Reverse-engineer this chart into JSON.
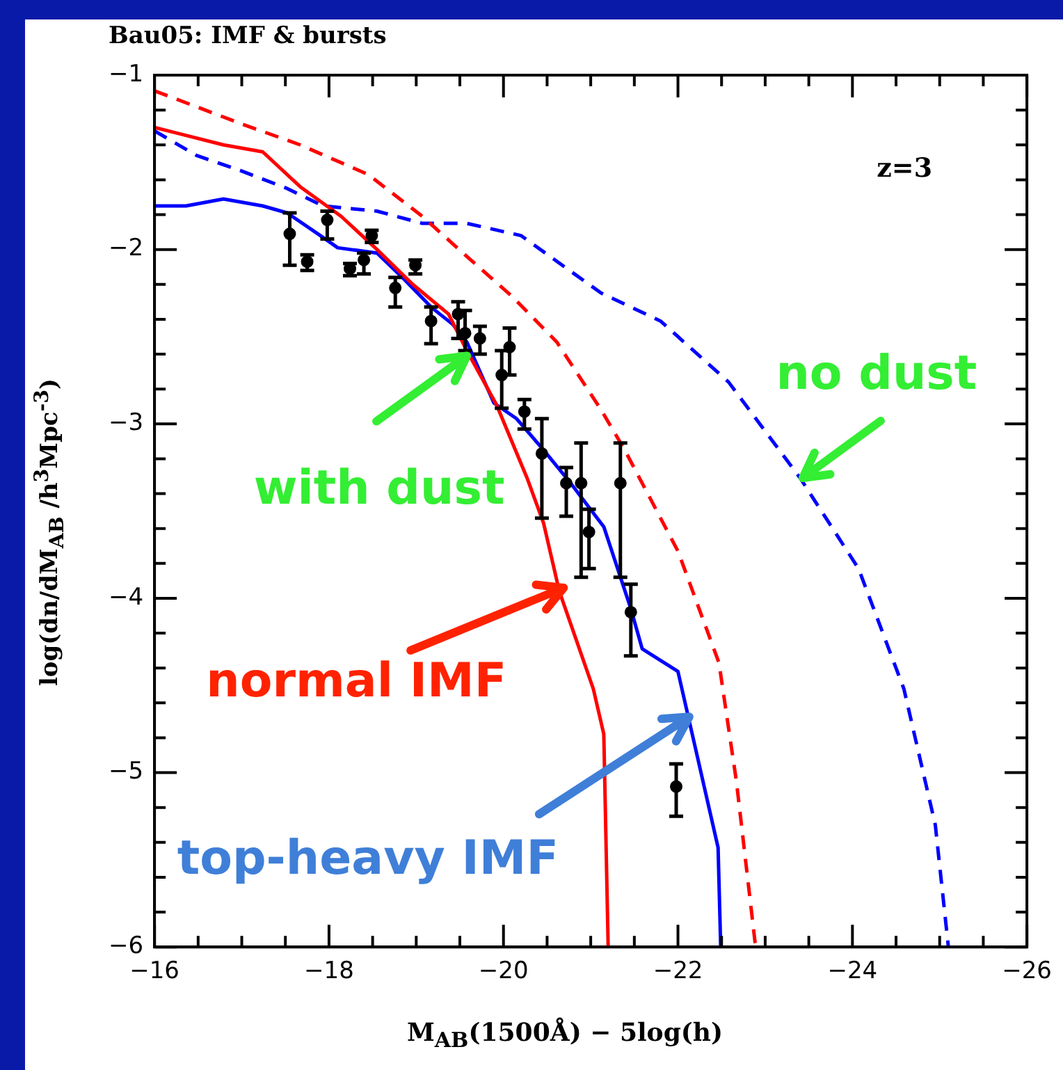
{
  "chart_data": {
    "type": "line",
    "title": "Bau05: IMF & bursts",
    "xlabel": "M$_{AB}$(1500Å) − 5log(h)",
    "ylabel": "log(dn/dM$_{AB}$ /h$^{3}$Mpc$^{-3}$)",
    "xlim": [
      -16,
      -26
    ],
    "ylim": [
      -6,
      -1
    ],
    "xticks": [
      -16,
      {
        "value": -16.5,
        "label": null
      },
      {
        "value": -17,
        "label": null
      },
      {
        "value": -17.5,
        "label": null
      },
      -18,
      {
        "value": -18.5,
        "label": null
      },
      {
        "value": -19,
        "label": null
      },
      {
        "value": -19.5,
        "label": null
      },
      -20,
      {
        "value": -20.5,
        "label": null
      },
      {
        "value": -21,
        "label": null
      },
      {
        "value": -21.5,
        "label": null
      },
      -22,
      {
        "value": -22.5,
        "label": null
      },
      {
        "value": -23,
        "label": null
      },
      {
        "value": -23.5,
        "label": null
      },
      -24,
      {
        "value": -24.5,
        "label": null
      },
      {
        "value": -25,
        "label": null
      },
      {
        "value": -25.5,
        "label": null
      },
      -26
    ],
    "yticks": [
      -6,
      {
        "value": -5.8,
        "label": null
      },
      {
        "value": -5.6,
        "label": null
      },
      {
        "value": -5.4,
        "label": null
      },
      {
        "value": -5.2,
        "label": null
      },
      -5,
      {
        "value": -4.8,
        "label": null
      },
      {
        "value": -4.6,
        "label": null
      },
      {
        "value": -4.4,
        "label": null
      },
      {
        "value": -4.2,
        "label": null
      },
      -4,
      {
        "value": -3.8,
        "label": null
      },
      {
        "value": -3.6,
        "label": null
      },
      {
        "value": -3.4,
        "label": null
      },
      {
        "value": -3.2,
        "label": null
      },
      -3,
      {
        "value": -2.8,
        "label": null
      },
      {
        "value": -2.6,
        "label": null
      },
      {
        "value": -2.4,
        "label": null
      },
      {
        "value": -2.2,
        "label": null
      },
      -2,
      {
        "value": -1.8,
        "label": null
      },
      {
        "value": -1.6,
        "label": null
      },
      {
        "value": -1.4,
        "label": null
      },
      {
        "value": -1.2,
        "label": null
      },
      -1
    ],
    "grid": false,
    "legend": false,
    "series": [
      {
        "color": "#ff0000",
        "line_style": "solid",
        "marker": "none",
        "x": [
          -16,
          -16.79,
          -17.24,
          -17.67,
          -18.14,
          -18.55,
          -18.96,
          -19.37,
          -19.58,
          -19.92,
          -20.27,
          -20.46,
          -20.64,
          -21.03,
          -21.15,
          -21.2
        ],
        "values": [
          -1.3,
          -1.4,
          -1.44,
          -1.64,
          -1.81,
          -2.0,
          -2.2,
          -2.37,
          -2.58,
          -2.89,
          -3.31,
          -3.57,
          -3.96,
          -4.52,
          -4.78,
          -6
        ]
      },
      {
        "color": "#ff0000",
        "line_style": "dashed",
        "marker": "none",
        "x": [
          -16,
          -17.0,
          -17.67,
          -18.45,
          -19.07,
          -19.58,
          -20.1,
          -20.61,
          -21.12,
          -21.39,
          -22.0,
          -22.47,
          -22.67,
          -22.89
        ],
        "values": [
          -1.09,
          -1.28,
          -1.4,
          -1.57,
          -1.81,
          -2.04,
          -2.27,
          -2.53,
          -2.92,
          -3.15,
          -3.73,
          -4.37,
          -5.05,
          -6
        ]
      },
      {
        "color": "#0000ff",
        "line_style": "solid",
        "marker": "none",
        "x": [
          -16,
          -16.36,
          -16.79,
          -17.24,
          -17.52,
          -17.93,
          -18.1,
          -18.55,
          -18.86,
          -19.17,
          -19.42,
          -19.58,
          -19.89,
          -20.15,
          -20.46,
          -20.77,
          -21.15,
          -21.46,
          -21.59,
          -22.0,
          -22.46,
          -22.49
        ],
        "values": [
          -1.75,
          -1.75,
          -1.71,
          -1.75,
          -1.79,
          -1.93,
          -1.99,
          -2.02,
          -2.17,
          -2.33,
          -2.43,
          -2.53,
          -2.88,
          -2.97,
          -3.15,
          -3.34,
          -3.59,
          -4.06,
          -4.29,
          -4.42,
          -5.43,
          -6
        ]
      },
      {
        "color": "#0000ff",
        "line_style": "dashed",
        "marker": "none",
        "x": [
          -16,
          -16.48,
          -17.0,
          -17.52,
          -17.93,
          -18.55,
          -19.07,
          -19.58,
          -20.2,
          -21.12,
          -21.8,
          -22.58,
          -23.4,
          -24.07,
          -24.59,
          -24.95,
          -25.1
        ],
        "values": [
          -1.32,
          -1.46,
          -1.55,
          -1.65,
          -1.75,
          -1.78,
          -1.85,
          -1.85,
          -1.92,
          -2.25,
          -2.41,
          -2.76,
          -3.31,
          -3.83,
          -4.52,
          -5.3,
          -6
        ]
      },
      {
        "type": "scatter",
        "color": "#000000",
        "marker": "circle",
        "x": [
          -17.55,
          -17.75,
          -17.98,
          -18.24,
          -18.4,
          -18.49,
          -18.76,
          -18.99,
          -19.17,
          -19.48,
          -19.56,
          -19.73,
          -19.98,
          -20.07,
          -20.24,
          -20.44,
          -20.72,
          -20.89,
          -20.98,
          -21.34,
          -21.46,
          -21.98
        ],
        "values": [
          -1.91,
          -2.07,
          -1.83,
          -2.11,
          -2.06,
          -1.92,
          -2.22,
          -2.09,
          -2.41,
          -2.37,
          -2.48,
          -2.51,
          -2.72,
          -2.56,
          -2.93,
          -3.17,
          -3.34,
          -3.34,
          -3.62,
          -3.34,
          -4.08,
          -5.08
        ],
        "errors": [
          [
            -2.09,
            -1.79
          ],
          [
            -2.12,
            -2.03
          ],
          [
            -1.94,
            -1.78
          ],
          [
            -2.15,
            -2.08
          ],
          [
            -2.14,
            -2.02
          ],
          [
            -1.96,
            -1.89
          ],
          [
            -2.33,
            -2.16
          ],
          [
            -2.14,
            -2.06
          ],
          [
            -2.54,
            -2.33
          ],
          [
            -2.51,
            -2.3
          ],
          [
            -2.58,
            -2.35
          ],
          [
            -2.6,
            -2.44
          ],
          [
            -2.91,
            -2.58
          ],
          [
            -2.72,
            -2.45
          ],
          [
            -3.03,
            -2.86
          ],
          [
            -3.54,
            -2.97
          ],
          [
            -3.53,
            -3.25
          ],
          [
            -3.88,
            -3.11
          ],
          [
            -3.83,
            -3.49
          ],
          [
            -3.88,
            -3.11
          ],
          [
            -4.33,
            -3.92
          ],
          [
            -5.25,
            -4.95
          ]
        ]
      }
    ],
    "annotations": [
      "z=3",
      {
        "text": "with dust",
        "x": -19.58,
        "y": -2.61
      },
      {
        "text": "no dust",
        "x": -23.43,
        "y": -3.31
      },
      {
        "text": "normal IMF",
        "x": -20.69,
        "y": -3.94
      },
      {
        "text": "top-heavy IMF",
        "x": -22.13,
        "y": -4.68
      }
    ]
  }
}
